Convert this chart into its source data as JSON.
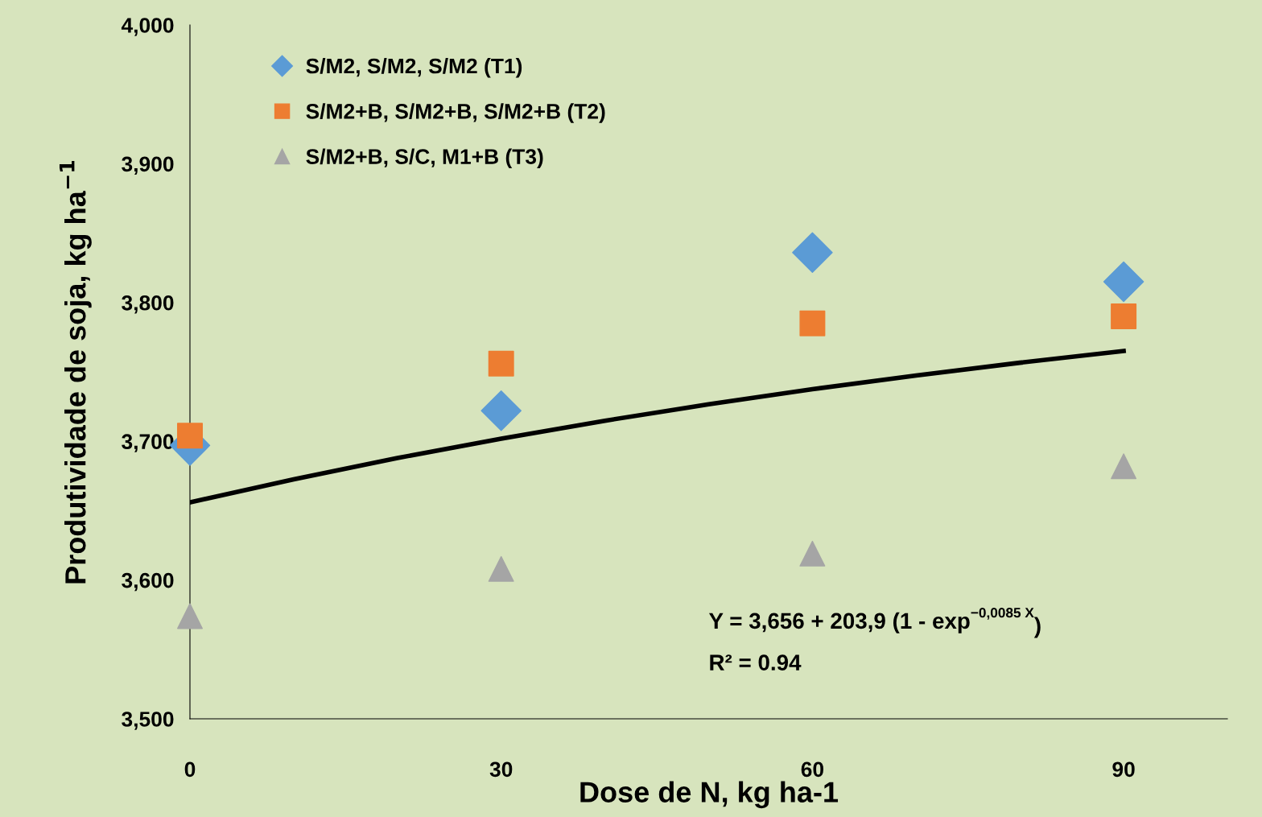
{
  "chart_data": {
    "type": "scatter",
    "xlabel": "Dose de N, kg ha-1",
    "ylabel": "Produtividade de soja, kg ha$^{−1}$",
    "xlim": [
      0,
      100
    ],
    "xticks": [
      0,
      30,
      60,
      90
    ],
    "ylim": [
      3500,
      4000
    ],
    "yticks": [
      {
        "value": 3500,
        "label": "3,500"
      },
      {
        "value": 3600,
        "label": "3,600"
      },
      {
        "value": 3700,
        "label": "3,700"
      },
      {
        "value": 3800,
        "label": "3,800"
      },
      {
        "value": 3900,
        "label": "3,900"
      },
      {
        "value": 4000,
        "label": "4,000"
      }
    ],
    "grid": false,
    "legend": "top left",
    "series": [
      {
        "name": "S/M2, S/M2, S/M2 (T1)",
        "color": "#5b9bd5",
        "marker": "diamond",
        "x": [
          0,
          30,
          60,
          90
        ],
        "values": [
          3697,
          3722,
          3836,
          3815
        ]
      },
      {
        "name": "S/M2+B, S/M2+B, S/M2+B (T2)",
        "color": "#ed7d31",
        "marker": "square",
        "x": [
          0,
          30,
          60,
          90
        ],
        "values": [
          3704,
          3756,
          3785,
          3790
        ]
      },
      {
        "name": "S/M2+B, S/C, M1+B (T3)",
        "color": "#a5a5a5",
        "marker": "triangle",
        "x": [
          0,
          30,
          60,
          90
        ],
        "values": [
          3574,
          3608,
          3619,
          3682
        ]
      },
      {
        "type": "line",
        "color": "#000000",
        "line_style": "solid",
        "marker": "none",
        "x": [
          0,
          10,
          20,
          30,
          40,
          50,
          60,
          70,
          80,
          90
        ],
        "values": [
          3656,
          3672.6,
          3687.9,
          3701.9,
          3714.8,
          3726.6,
          3737.5,
          3747.4,
          3756.6,
          3765.0
        ]
      }
    ],
    "annotations": [
      "Y = 3,656 + 203,9 (1 - exp$^{−0,0085 X}$)",
      "R² = 0.94"
    ]
  }
}
